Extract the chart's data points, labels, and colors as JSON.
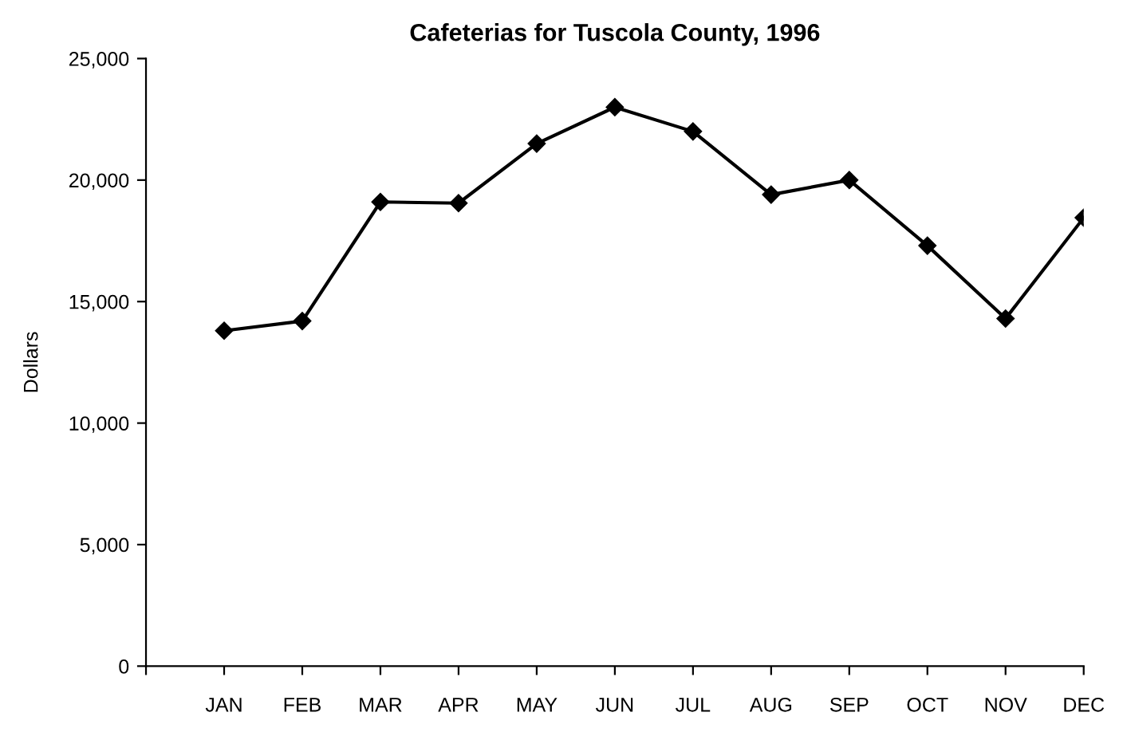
{
  "chart_data": {
    "type": "line",
    "title": "Cafeterias for Tuscola County, 1996",
    "ylabel": "Dollars",
    "categories": [
      "JAN",
      "FEB",
      "MAR",
      "APR",
      "MAY",
      "JUN",
      "JUL",
      "AUG",
      "SEP",
      "OCT",
      "NOV",
      "DEC"
    ],
    "series": [
      {
        "color": "#000000",
        "values": [
          13800,
          14200,
          19100,
          19050,
          21500,
          23000,
          22000,
          19400,
          20000,
          17300,
          14300,
          18450
        ]
      }
    ],
    "ylim": [
      0,
      25000
    ],
    "yticks": [
      {
        "value": 0,
        "label": "0"
      },
      {
        "value": 5000,
        "label": "5,000"
      },
      {
        "value": 10000,
        "label": "10,000"
      },
      {
        "value": 15000,
        "label": "15,000"
      },
      {
        "value": 20000,
        "label": "20,000"
      },
      {
        "value": 25000,
        "label": "25,000"
      }
    ],
    "grid": false,
    "marker": "diamond",
    "line_style": "solid"
  }
}
